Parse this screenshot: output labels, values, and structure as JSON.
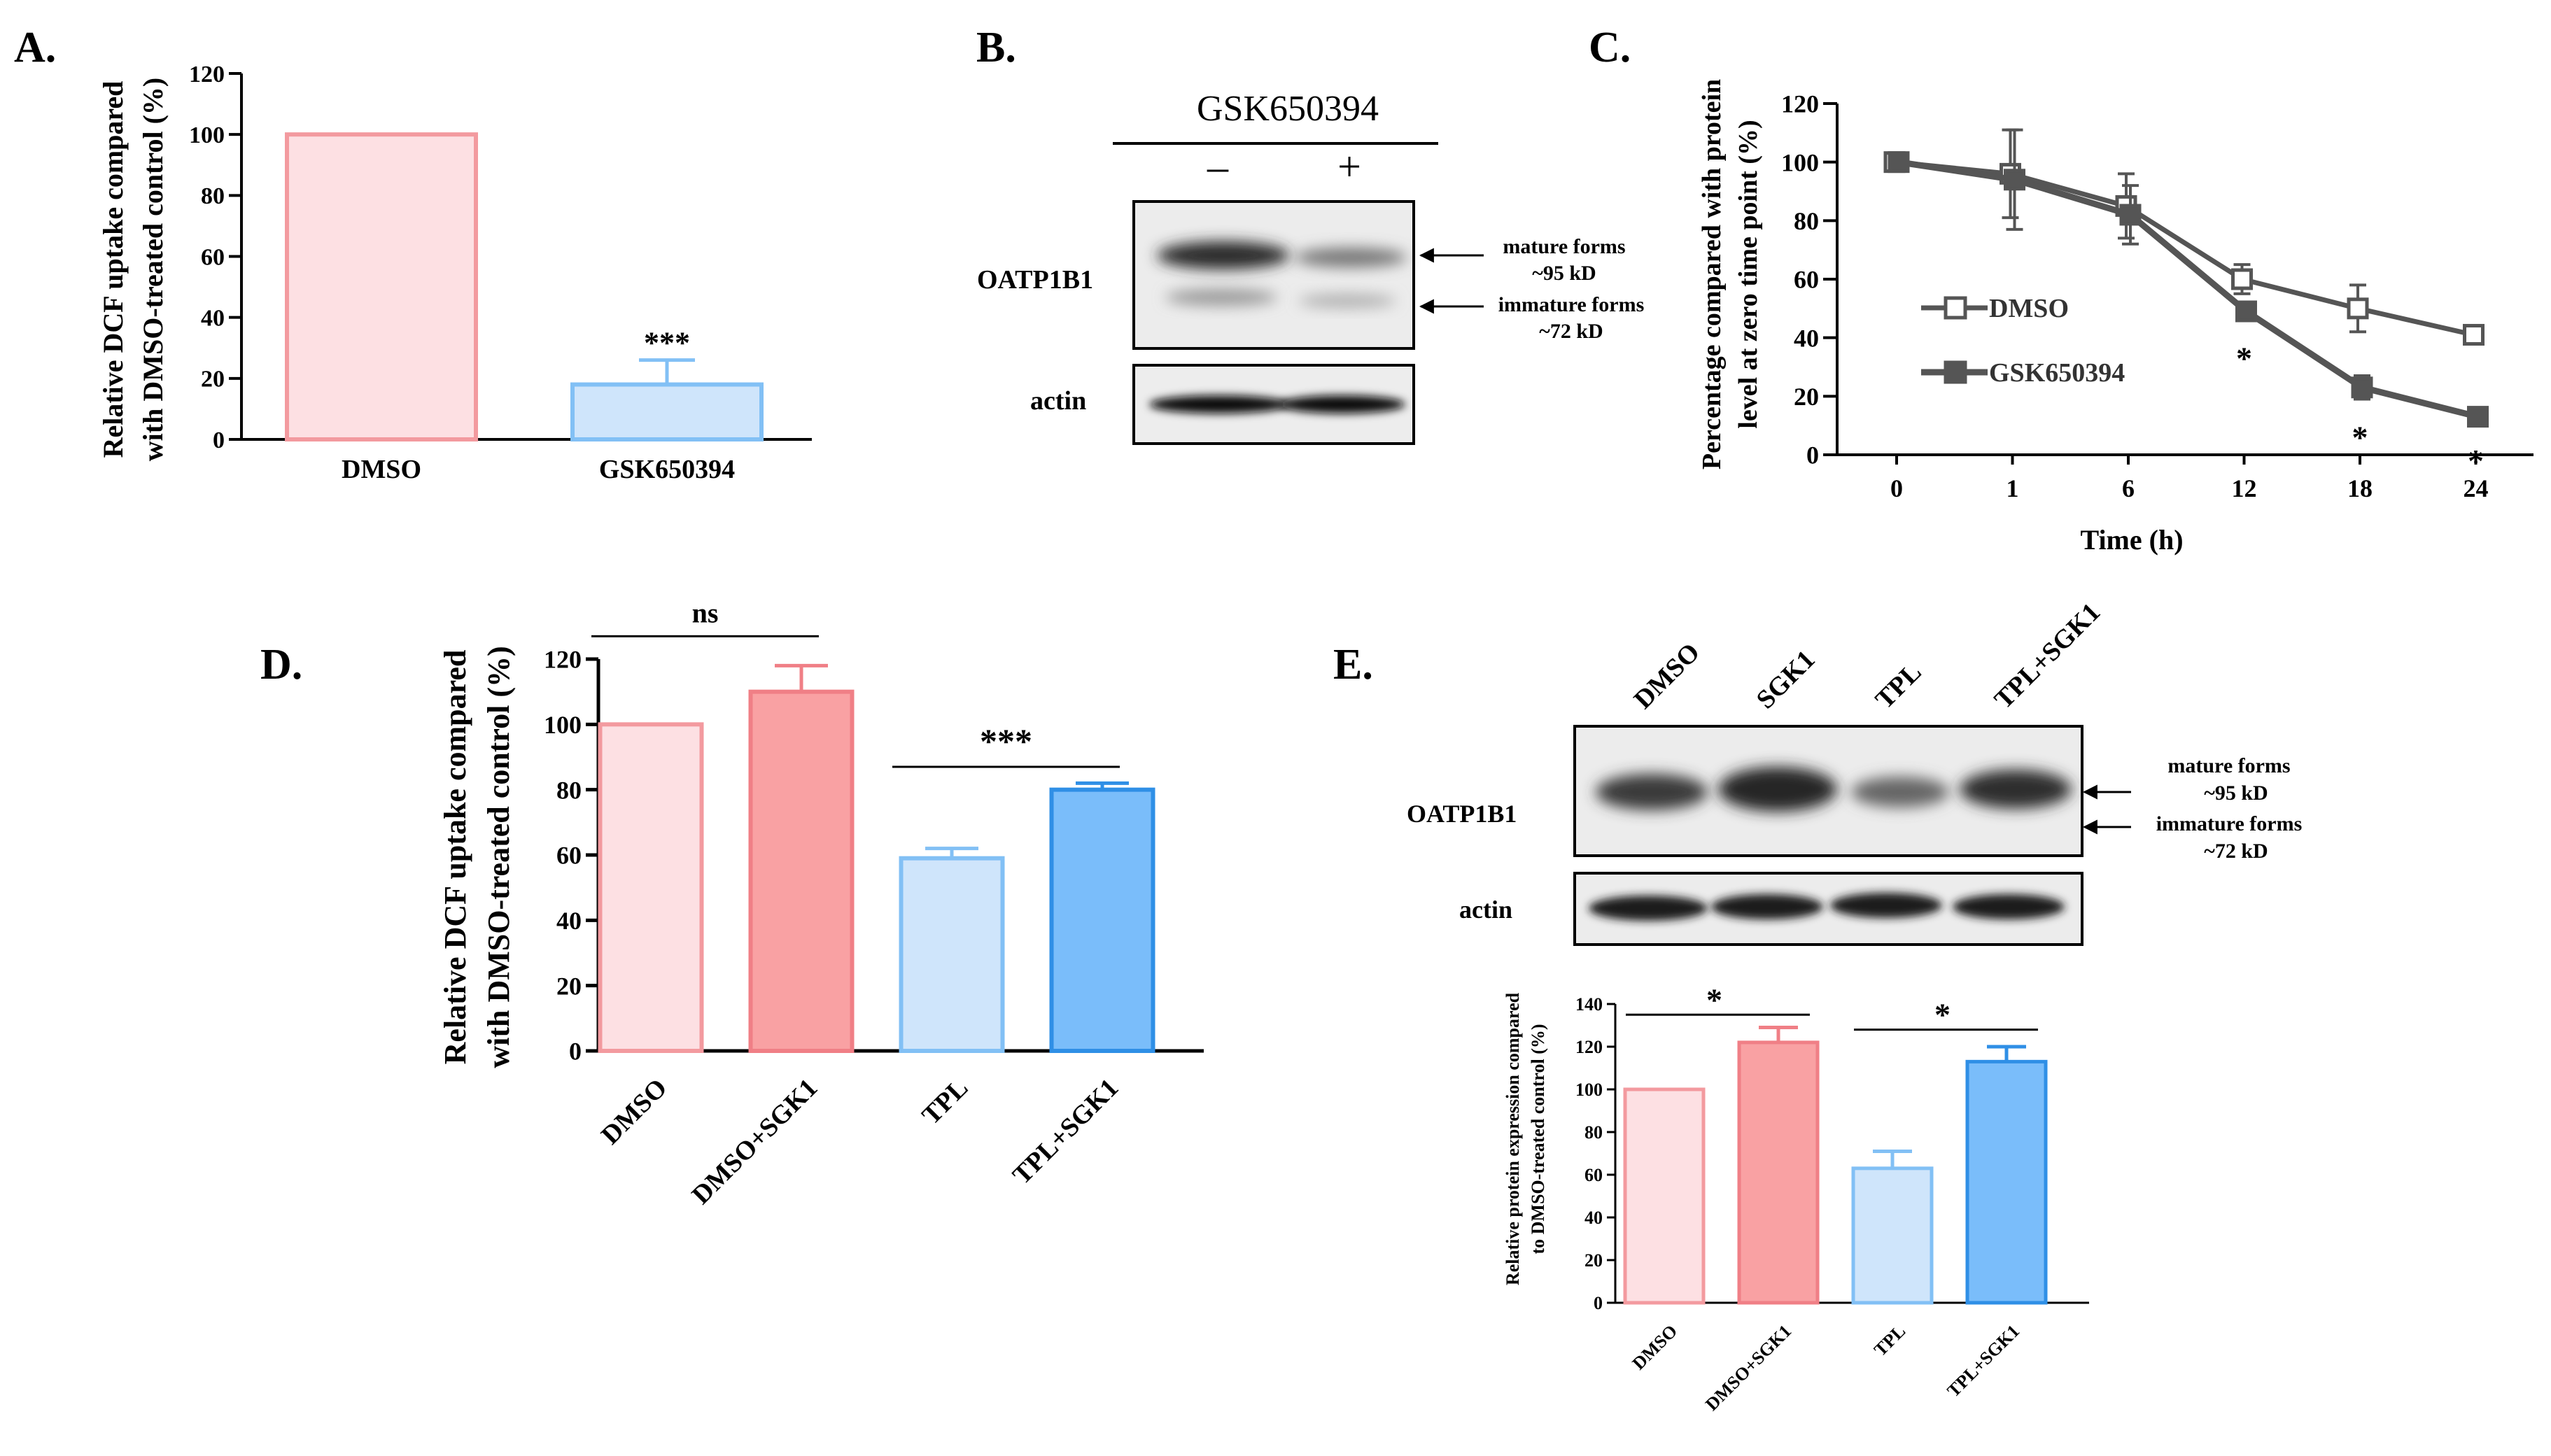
{
  "panels": {
    "A": {
      "letter": "A.",
      "ylabel_lines": [
        "Relative DCF uptake compared",
        "with DMSO-treated control (%)"
      ],
      "significance": "***"
    },
    "B": {
      "letter": "B.",
      "treatment": "GSK650394",
      "lane_signs": [
        "–",
        "+"
      ],
      "row_labels": [
        "OATP1B1",
        "actin"
      ],
      "band_annotations": {
        "mature": [
          "mature forms",
          "~95 kD"
        ],
        "immature": [
          "immature forms",
          "~72 kD"
        ]
      }
    },
    "C": {
      "letter": "C.",
      "ylabel_lines": [
        "Percentage compared with protein",
        "level at zero time point (%)"
      ],
      "xlabel": "Time (h)",
      "star": "*"
    },
    "D": {
      "letter": "D.",
      "ylabel_lines": [
        "Relative DCF uptake compared",
        "with DMSO-treated control (%)"
      ],
      "sig_left": "ns",
      "sig_right": "***"
    },
    "E": {
      "letter": "E.",
      "lane_labels": [
        "DMSO",
        "SGK1",
        "TPL",
        "TPL+SGK1"
      ],
      "row_labels": [
        "OATP1B1",
        "actin"
      ],
      "band_annotations": {
        "mature": [
          "mature forms",
          "~95 kD"
        ],
        "immature": [
          "immature forms",
          "~72 kD"
        ]
      },
      "ylabel_lines": [
        "Relative protein expression compared",
        "to DMSO-treated control (%)"
      ],
      "sig_left": "*",
      "sig_right": "*"
    }
  },
  "colors": {
    "light_pink_fill": "#fde0e3",
    "pink_edge": "#f39a9f",
    "salmon_fill": "#f9a1a3",
    "salmon_edge": "#f07f86",
    "light_blue_fill": "#cfe5fb",
    "light_blue_edge": "#82c0f5",
    "blue_fill": "#7abdfa",
    "blue_edge": "#2f8fe6",
    "line_gray": "#555555"
  },
  "chart_data": [
    {
      "panel": "A",
      "type": "bar",
      "categories": [
        "DMSO",
        "GSK650394"
      ],
      "values": [
        100,
        18
      ],
      "errors": [
        0,
        8
      ],
      "ylabel": "Relative DCF uptake compared with DMSO-treated control (%)",
      "ylim": [
        0,
        120
      ],
      "yticks": [
        0,
        20,
        40,
        60,
        80,
        100,
        120
      ],
      "annotations": [
        {
          "category": "GSK650394",
          "text": "***"
        }
      ]
    },
    {
      "panel": "C",
      "type": "line",
      "x": [
        "0",
        "1",
        "6",
        "12",
        "18",
        "24"
      ],
      "xlabel": "Time (h)",
      "ylabel": "Percentage compared with protein level at zero time point (%)",
      "ylim": [
        0,
        120
      ],
      "yticks": [
        0,
        20,
        40,
        60,
        80,
        100,
        120
      ],
      "legend_position": "left-middle",
      "series": [
        {
          "name": "DMSO",
          "marker": "open-square",
          "values": [
            100,
            96,
            85,
            60,
            50,
            41
          ],
          "errors": [
            0,
            15,
            11,
            5,
            8,
            2
          ]
        },
        {
          "name": "GSK650394",
          "marker": "filled-square",
          "values": [
            100,
            94,
            82,
            49,
            23,
            13
          ],
          "errors": [
            0,
            17,
            10,
            3,
            4,
            2
          ]
        }
      ],
      "significance": [
        {
          "x": "12",
          "text": "*"
        },
        {
          "x": "18",
          "text": "*"
        },
        {
          "x": "24",
          "text": "*"
        }
      ]
    },
    {
      "panel": "D",
      "type": "bar",
      "categories": [
        "DMSO",
        "DMSO+SGK1",
        "TPL",
        "TPL+SGK1"
      ],
      "values": [
        100,
        110,
        59,
        80
      ],
      "errors": [
        0,
        8,
        3,
        2
      ],
      "ylabel": "Relative DCF uptake compared with DMSO-treated control (%)",
      "ylim": [
        0,
        120
      ],
      "yticks": [
        0,
        20,
        40,
        60,
        80,
        100,
        120
      ],
      "comparisons": [
        {
          "between": [
            "DMSO",
            "DMSO+SGK1"
          ],
          "text": "ns"
        },
        {
          "between": [
            "TPL",
            "TPL+SGK1"
          ],
          "text": "***"
        }
      ]
    },
    {
      "panel": "E",
      "type": "bar",
      "categories": [
        "DMSO",
        "DMSO+SGK1",
        "TPL",
        "TPL+SGK1"
      ],
      "values": [
        100,
        122,
        63,
        113
      ],
      "errors": [
        0,
        7,
        8,
        7
      ],
      "ylabel": "Relative protein expression compared to DMSO-treated control (%)",
      "ylim": [
        0,
        140
      ],
      "yticks": [
        0,
        20,
        40,
        60,
        80,
        100,
        120,
        140
      ],
      "comparisons": [
        {
          "between": [
            "DMSO",
            "DMSO+SGK1"
          ],
          "text": "*"
        },
        {
          "between": [
            "TPL",
            "TPL+SGK1"
          ],
          "text": "*"
        }
      ]
    }
  ]
}
